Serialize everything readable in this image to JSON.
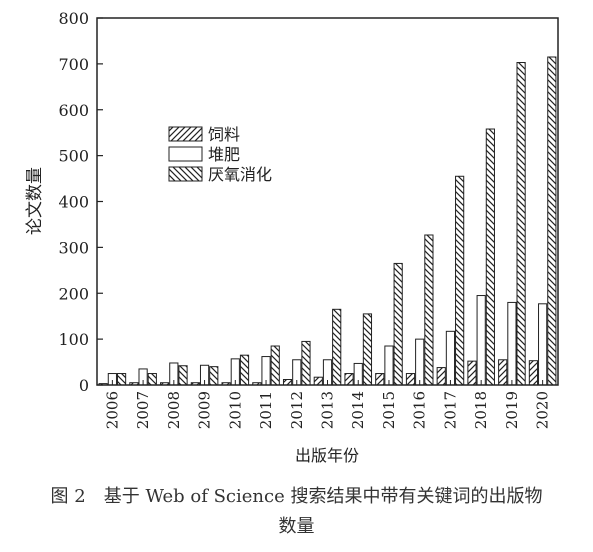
{
  "chart_data": {
    "type": "bar",
    "xlabel": "出版年份",
    "ylabel": "论文数量",
    "ylim": [
      0,
      800
    ],
    "yticks": [
      0,
      100,
      200,
      300,
      400,
      500,
      600,
      700,
      800
    ],
    "categories": [
      "2006",
      "2007",
      "2008",
      "2009",
      "2010",
      "2011",
      "2012",
      "2013",
      "2014",
      "2015",
      "2016",
      "2017",
      "2018",
      "2019",
      "2020"
    ],
    "series": [
      {
        "name": "饲料",
        "pattern": "hatch-right",
        "values": [
          3,
          5,
          5,
          5,
          5,
          5,
          12,
          17,
          25,
          25,
          25,
          38,
          52,
          55,
          53
        ]
      },
      {
        "name": "堆肥",
        "pattern": "solid",
        "values": [
          25,
          35,
          48,
          43,
          57,
          62,
          55,
          55,
          47,
          85,
          100,
          117,
          195,
          180,
          177
        ]
      },
      {
        "name": "厌氧消化",
        "pattern": "hatch-left",
        "values": [
          25,
          25,
          42,
          40,
          65,
          85,
          95,
          165,
          155,
          265,
          327,
          455,
          558,
          703,
          715
        ]
      }
    ],
    "legend_position": "upper-left",
    "grid": false
  },
  "caption": {
    "figure_number": "图 2",
    "line1": "基于 Web of Science 搜索结果中带有关键词的出版物",
    "line2": "数量"
  },
  "colors": {
    "ink": "#222222",
    "background": "#ffffff"
  }
}
